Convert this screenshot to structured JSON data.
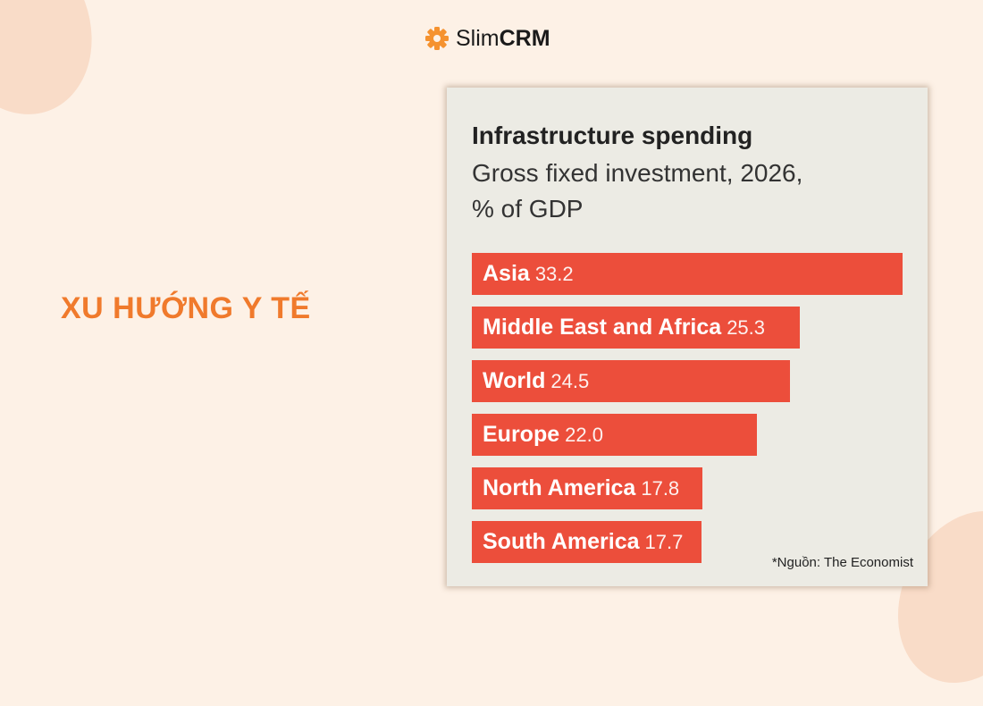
{
  "brand": {
    "name_light": "Slim",
    "name_bold": "CRM",
    "icon": "gear-icon",
    "color": "#f5922f"
  },
  "headline": "XU HƯỚNG Y TẾ",
  "source": "*Nguồn: The Economist",
  "chart_data": {
    "type": "bar",
    "orientation": "horizontal",
    "title": "Infrastructure spending",
    "subtitle": "Gross fixed investment, 2026, % of GDP",
    "categories": [
      "Asia",
      "Middle East and Africa",
      "World",
      "Europe",
      "North America",
      "South America"
    ],
    "values": [
      33.2,
      25.3,
      24.5,
      22.0,
      17.8,
      17.7
    ],
    "bar_color": "#ec4e3b",
    "grid": false,
    "xlim": [
      0,
      33.2
    ]
  }
}
